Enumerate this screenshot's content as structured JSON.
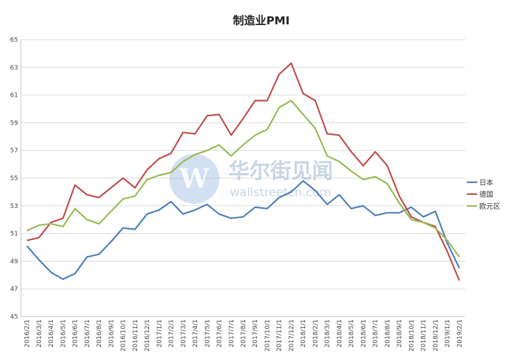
{
  "watermark": {
    "brand_cn": "华尔街见闻",
    "brand_en": "wallstreetcn.com",
    "logo_letter": "W"
  },
  "chart_data": {
    "type": "line",
    "title": "制造业PMI",
    "xlabel": "",
    "ylabel": "",
    "ylim": [
      45,
      65
    ],
    "yticks": [
      45,
      47,
      49,
      51,
      53,
      55,
      57,
      59,
      61,
      63,
      65
    ],
    "grid": true,
    "legend_position": "right",
    "categories": [
      "2016/2/1",
      "2016/3/1",
      "2016/4/1",
      "2016/5/1",
      "2016/6/1",
      "2016/7/1",
      "2016/8/1",
      "2016/9/1",
      "2016/10/1",
      "2016/11/1",
      "2016/12/1",
      "2017/1/1",
      "2017/2/1",
      "2017/3/1",
      "2017/4/1",
      "2017/5/1",
      "2017/6/1",
      "2017/7/1",
      "2017/8/1",
      "2017/9/1",
      "2017/10/1",
      "2017/11/1",
      "2017/12/1",
      "2018/1/1",
      "2018/2/1",
      "2018/3/1",
      "2018/4/1",
      "2018/5/1",
      "2018/6/1",
      "2018/7/1",
      "2018/8/1",
      "2018/9/1",
      "2018/10/1",
      "2018/11/1",
      "2018/12/1",
      "2019/1/1",
      "2019/2/1"
    ],
    "series": [
      {
        "name": "日本",
        "color": "#4a7ebb",
        "values": [
          50.1,
          49.1,
          48.2,
          47.7,
          48.1,
          49.3,
          49.5,
          50.4,
          51.4,
          51.3,
          52.4,
          52.7,
          53.3,
          52.4,
          52.7,
          53.1,
          52.4,
          52.1,
          52.2,
          52.9,
          52.8,
          53.6,
          54.0,
          54.8,
          54.1,
          53.1,
          53.8,
          52.8,
          53.0,
          52.3,
          52.5,
          52.5,
          52.9,
          52.2,
          52.6,
          50.3,
          48.5
        ]
      },
      {
        "name": "德国",
        "color": "#be4b48",
        "values": [
          50.5,
          50.7,
          51.8,
          52.1,
          54.5,
          53.8,
          53.6,
          54.3,
          55.0,
          54.3,
          55.6,
          56.4,
          56.8,
          58.3,
          58.2,
          59.5,
          59.6,
          58.1,
          59.3,
          60.6,
          60.6,
          62.5,
          63.3,
          61.1,
          60.6,
          58.2,
          58.1,
          56.9,
          55.9,
          56.9,
          55.9,
          53.7,
          52.2,
          51.8,
          51.5,
          49.7,
          47.6
        ]
      },
      {
        "name": "欧元区",
        "color": "#98b954",
        "values": [
          51.2,
          51.6,
          51.7,
          51.5,
          52.8,
          52.0,
          51.7,
          52.6,
          53.5,
          53.7,
          54.9,
          55.2,
          55.4,
          56.2,
          56.7,
          57.0,
          57.4,
          56.6,
          57.4,
          58.1,
          58.5,
          60.1,
          60.6,
          59.6,
          58.6,
          56.6,
          56.2,
          55.5,
          54.9,
          55.1,
          54.6,
          53.2,
          52.0,
          51.8,
          51.4,
          50.5,
          49.3
        ]
      }
    ]
  }
}
